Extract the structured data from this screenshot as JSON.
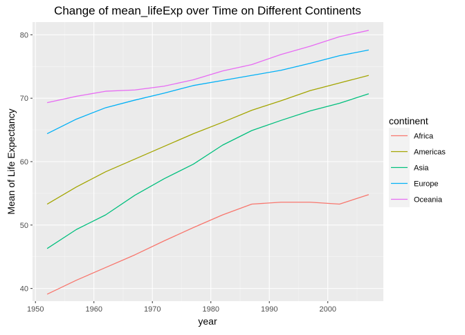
{
  "chart_data": {
    "type": "line",
    "title": "Change of mean_lifeExp over Time on Different Continents",
    "xlabel": "year",
    "ylabel": "Mean of Life Expectancy",
    "xlim": [
      1949.5,
      2009.5
    ],
    "ylim": [
      38.0,
      82.0
    ],
    "x_ticks": [
      1950,
      1960,
      1970,
      1980,
      1990,
      2000
    ],
    "y_ticks": [
      40,
      50,
      60,
      70,
      80
    ],
    "x": [
      1952,
      1957,
      1962,
      1967,
      1972,
      1977,
      1982,
      1987,
      1992,
      1997,
      2002,
      2007
    ],
    "legend_title": "continent",
    "legend_position": "right",
    "grid": true,
    "panel_background": "#ebebeb",
    "series": [
      {
        "name": "Africa",
        "color": "#F8766D",
        "values": [
          39.1,
          41.3,
          43.3,
          45.3,
          47.5,
          49.6,
          51.6,
          53.3,
          53.6,
          53.6,
          53.3,
          54.8
        ]
      },
      {
        "name": "Americas",
        "color": "#A3A500",
        "values": [
          53.3,
          56.0,
          58.4,
          60.4,
          62.4,
          64.4,
          66.2,
          68.1,
          69.6,
          71.2,
          72.4,
          73.6
        ]
      },
      {
        "name": "Asia",
        "color": "#00BF7D",
        "values": [
          46.3,
          49.3,
          51.6,
          54.7,
          57.3,
          59.6,
          62.6,
          64.9,
          66.5,
          68.0,
          69.2,
          70.7
        ]
      },
      {
        "name": "Europe",
        "color": "#00B0F6",
        "values": [
          64.4,
          66.7,
          68.5,
          69.7,
          70.8,
          72.0,
          72.8,
          73.6,
          74.4,
          75.5,
          76.7,
          77.6
        ]
      },
      {
        "name": "Oceania",
        "color": "#E76BF3",
        "values": [
          69.3,
          70.3,
          71.1,
          71.3,
          71.9,
          72.9,
          74.3,
          75.3,
          76.9,
          78.2,
          79.7,
          80.7
        ]
      }
    ]
  }
}
